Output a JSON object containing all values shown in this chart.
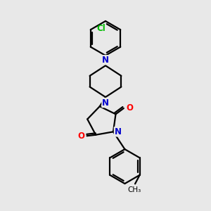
{
  "background_color": "#e8e8e8",
  "bond_color": "#000000",
  "N_color": "#0000cc",
  "O_color": "#ff0000",
  "Cl_color": "#00bb00",
  "label_Cl": "Cl",
  "label_N": "N",
  "label_O": "O",
  "figsize": [
    3.0,
    3.0
  ],
  "dpi": 100
}
